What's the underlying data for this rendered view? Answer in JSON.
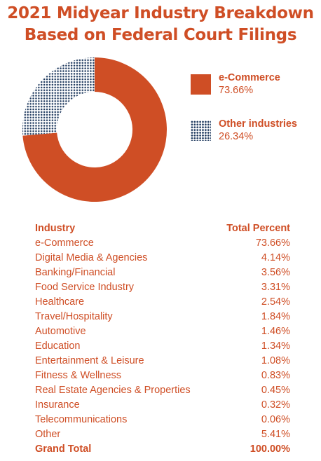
{
  "chart_data": {
    "type": "pie",
    "title_lines": [
      "2021 Midyear Industry Breakdown",
      "Based on Federal Court Filings"
    ],
    "legend": [
      {
        "name": "e-Commerce",
        "value_label": "73.66%",
        "value": 73.66,
        "color": "#cf4e25",
        "pattern": "solid"
      },
      {
        "name": "Other industries",
        "value_label": "26.34%",
        "value": 26.34,
        "color": "#1f3a5f",
        "pattern": "dots"
      }
    ],
    "table": {
      "headers": [
        "Industry",
        "Total Percent"
      ],
      "rows": [
        {
          "industry": "e-Commerce",
          "percent": "73.66%"
        },
        {
          "industry": "Digital Media & Agencies",
          "percent": "4.14%"
        },
        {
          "industry": "Banking/Financial",
          "percent": "3.56%"
        },
        {
          "industry": "Food Service Industry",
          "percent": "3.31%"
        },
        {
          "industry": "Healthcare",
          "percent": "2.54%"
        },
        {
          "industry": "Travel/Hospitality",
          "percent": "1.84%"
        },
        {
          "industry": "Automotive",
          "percent": "1.46%"
        },
        {
          "industry": "Education",
          "percent": "1.34%"
        },
        {
          "industry": "Entertainment & Leisure",
          "percent": "1.08%"
        },
        {
          "industry": "Fitness & Wellness",
          "percent": "0.83%"
        },
        {
          "industry": "Real Estate Agencies & Properties",
          "percent": "0.45%"
        },
        {
          "industry": "Insurance",
          "percent": "0.32%"
        },
        {
          "industry": "Telecommunications",
          "percent": "0.06%"
        },
        {
          "industry": "Other",
          "percent": "5.41%"
        }
      ],
      "total": {
        "label": "Grand Total",
        "percent": "100.00%"
      }
    }
  }
}
